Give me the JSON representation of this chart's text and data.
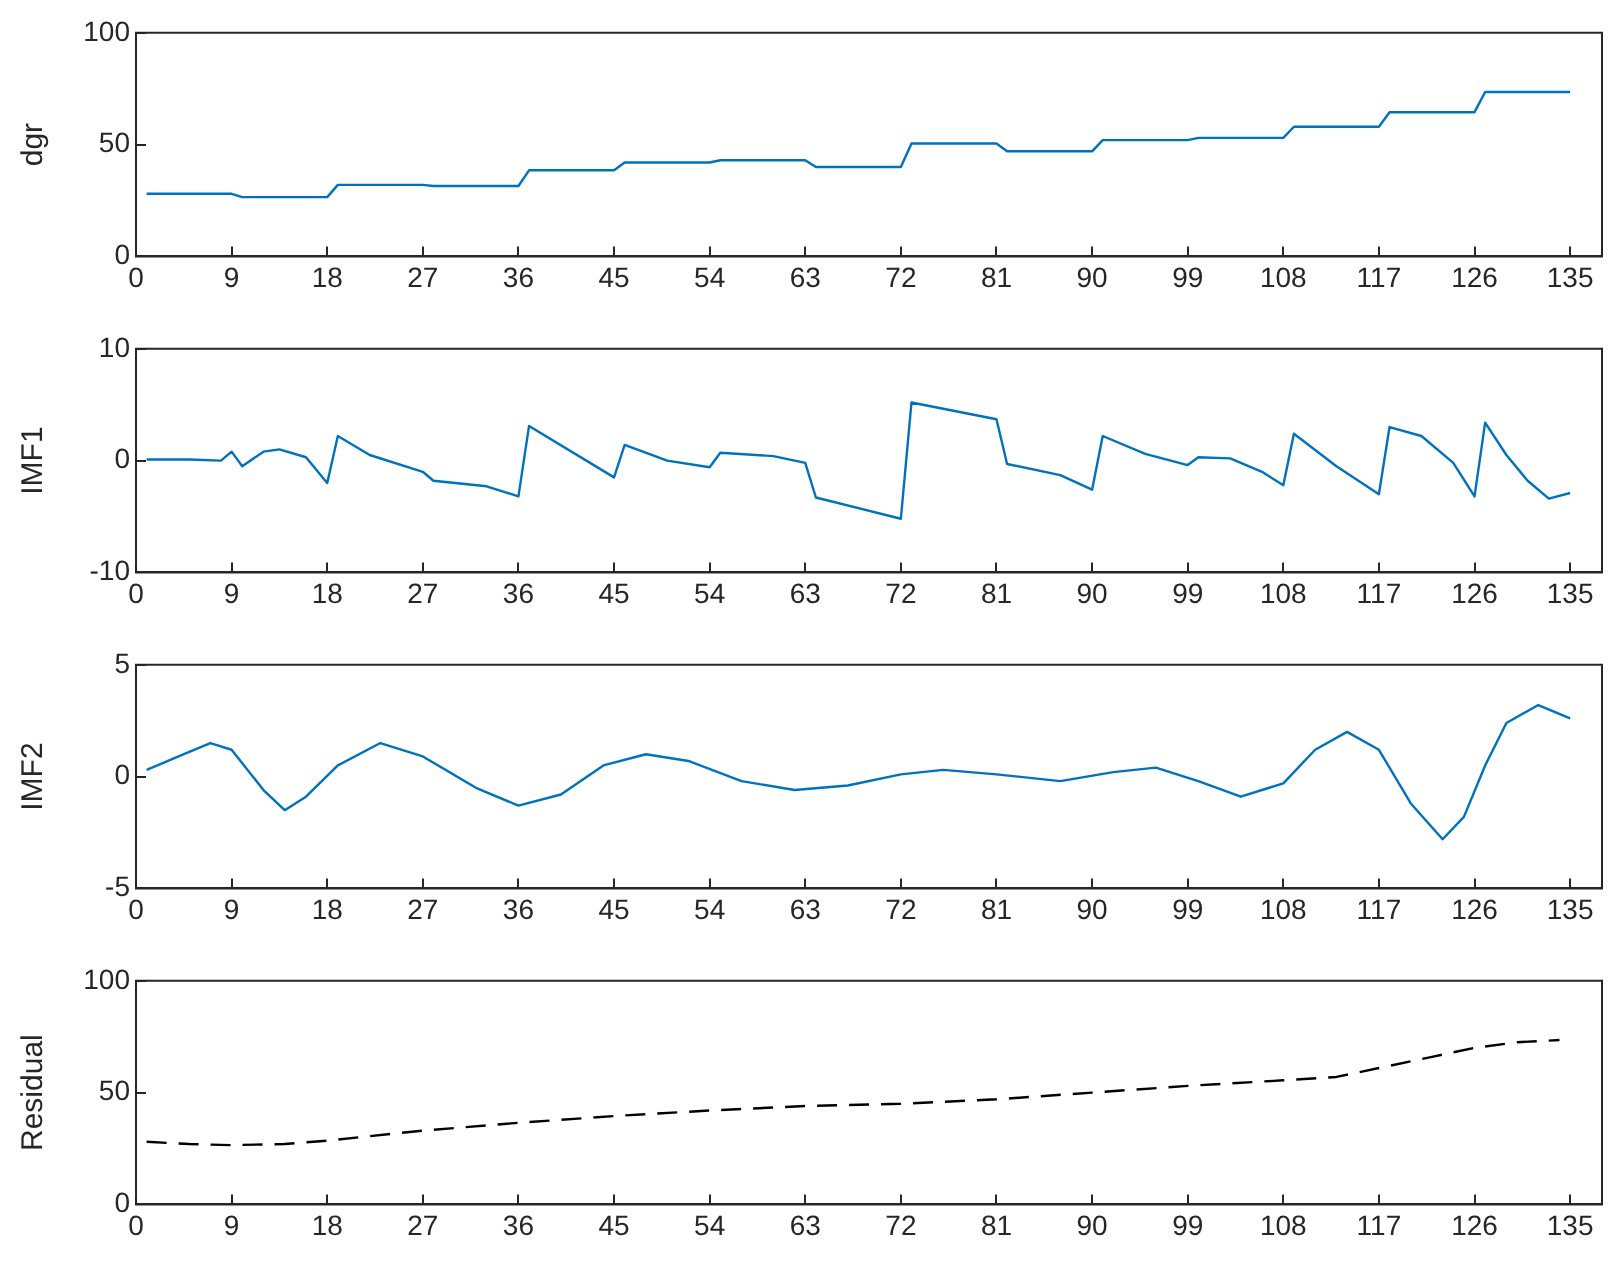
{
  "chart_data": [
    {
      "type": "line",
      "ylabel": "dgr",
      "xlim": [
        0,
        138
      ],
      "xticks": [
        0,
        9,
        18,
        27,
        36,
        45,
        54,
        63,
        72,
        81,
        90,
        99,
        108,
        117,
        126,
        135
      ],
      "ylim": [
        0,
        100
      ],
      "yticks": [
        0,
        50,
        100
      ],
      "marker": "none",
      "line_style": "solid",
      "series": [
        {
          "color": "#0072bd",
          "x": [
            1,
            9,
            10,
            18,
            19,
            27,
            28,
            36,
            37,
            45,
            46,
            54,
            55,
            63,
            64,
            72,
            73,
            81,
            82,
            90,
            91,
            99,
            100,
            108,
            109,
            117,
            118,
            126,
            127,
            135
          ],
          "values": [
            28,
            28,
            26.5,
            26.5,
            32,
            32,
            31.5,
            31.5,
            38.5,
            38.5,
            42,
            42,
            43,
            43,
            40,
            40,
            50.5,
            50.5,
            47,
            47,
            52,
            52,
            53,
            53,
            58,
            58,
            64.5,
            64.5,
            73.5,
            73.5
          ]
        }
      ]
    },
    {
      "type": "line",
      "ylabel": "IMF1",
      "xlim": [
        0,
        138
      ],
      "xticks": [
        0,
        9,
        18,
        27,
        36,
        45,
        54,
        63,
        72,
        81,
        90,
        99,
        108,
        117,
        126,
        135
      ],
      "ylim": [
        -10,
        10
      ],
      "yticks": [
        -10,
        0,
        10
      ],
      "marker": "none",
      "line_style": "solid",
      "series": [
        {
          "color": "#0072bd",
          "x": [
            1,
            5,
            8,
            9,
            10,
            12,
            13.5,
            16,
            18,
            19,
            22,
            27,
            28,
            33,
            36,
            37,
            45,
            46,
            50,
            54,
            55,
            60,
            63,
            64,
            72,
            73,
            81,
            82,
            87,
            90,
            91,
            95,
            99,
            100,
            103,
            106,
            108,
            109,
            113,
            117,
            118,
            121,
            124,
            126,
            127,
            129,
            131,
            133,
            135
          ],
          "values": [
            0.1,
            0.1,
            0,
            0.8,
            -0.5,
            0.8,
            1,
            0.3,
            -2,
            2.2,
            0.5,
            -1,
            -1.8,
            -2.3,
            -3.2,
            3.1,
            -1.5,
            1.4,
            0,
            -0.6,
            0.7,
            0.4,
            -0.2,
            -3.3,
            -5.2,
            5.2,
            3.7,
            -0.3,
            -1.3,
            -2.6,
            2.2,
            0.6,
            -0.4,
            0.3,
            0.2,
            -1,
            -2.2,
            2.4,
            -0.5,
            -3,
            3,
            2.2,
            -0.2,
            -3.2,
            3.4,
            0.5,
            -1.8,
            -3.4,
            -2.9
          ]
        }
      ]
    },
    {
      "type": "line",
      "ylabel": "IMF2",
      "xlim": [
        0,
        138
      ],
      "xticks": [
        0,
        9,
        18,
        27,
        36,
        45,
        54,
        63,
        72,
        81,
        90,
        99,
        108,
        117,
        126,
        135
      ],
      "ylim": [
        -5,
        5
      ],
      "yticks": [
        -5,
        0,
        5
      ],
      "marker": "none",
      "line_style": "solid",
      "series": [
        {
          "color": "#0072bd",
          "x": [
            1,
            4,
            7,
            9,
            12,
            14,
            16,
            19,
            23,
            27,
            32,
            36,
            40,
            44,
            48,
            52,
            57,
            62,
            67,
            72,
            76,
            81,
            87,
            92,
            96,
            100,
            104,
            108,
            111,
            114,
            117,
            120,
            123,
            125,
            127,
            129,
            132,
            135
          ],
          "values": [
            0.3,
            0.9,
            1.5,
            1.2,
            -0.6,
            -1.5,
            -0.9,
            0.5,
            1.5,
            0.9,
            -0.5,
            -1.3,
            -0.8,
            0.5,
            1,
            0.7,
            -0.2,
            -0.6,
            -0.4,
            0.1,
            0.3,
            0.1,
            -0.2,
            0.2,
            0.4,
            -0.2,
            -0.9,
            -0.3,
            1.2,
            2,
            1.2,
            -1.2,
            -2.8,
            -1.8,
            0.5,
            2.4,
            3.2,
            2.6
          ]
        }
      ]
    },
    {
      "type": "line",
      "ylabel": "Residual",
      "xlim": [
        0,
        138
      ],
      "xticks": [
        0,
        9,
        18,
        27,
        36,
        45,
        54,
        63,
        72,
        81,
        90,
        99,
        108,
        117,
        126,
        135
      ],
      "ylim": [
        0,
        100
      ],
      "yticks": [
        0,
        50,
        100
      ],
      "marker": "none",
      "line_style": "dashed",
      "series": [
        {
          "color": "#000000",
          "x": [
            1,
            5,
            9,
            14,
            18,
            27,
            36,
            45,
            54,
            63,
            72,
            81,
            90,
            99,
            108,
            113,
            117,
            122,
            126,
            130,
            134
          ],
          "values": [
            28,
            27,
            26.5,
            27,
            28.5,
            33,
            36.5,
            39.5,
            42,
            44,
            45,
            47,
            50,
            53,
            55.5,
            57,
            61,
            66,
            70,
            72.5,
            73.5
          ]
        }
      ]
    }
  ]
}
